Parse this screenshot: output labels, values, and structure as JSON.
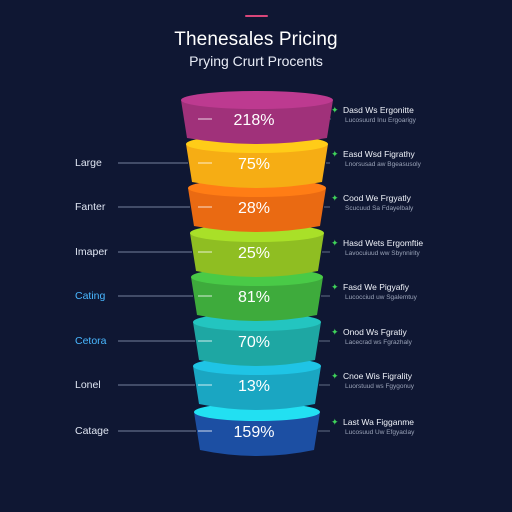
{
  "header": {
    "title": "Thenesales Pricing",
    "subtitle": "Prying Crurt Procents",
    "accent_color": "#d9467a"
  },
  "tiers": [
    {
      "percent": "218%",
      "left_label": "",
      "right_title": "Dasd Ws Ergonitte",
      "right_sub": "Lucosuurd Inu Ergoarigy",
      "color": "#a0317a"
    },
    {
      "percent": "75%",
      "left_label": "Large",
      "right_title": "Easd Wsd Figrathy",
      "right_sub": "Lnorsusad aw Bgeasusoly",
      "color": "#f6ad14"
    },
    {
      "percent": "28%",
      "left_label": "Fanter",
      "right_title": "Cood We Frgyatly",
      "right_sub": "Scucuud Sa Fdayelbaly",
      "color": "#ea6a12"
    },
    {
      "percent": "25%",
      "left_label": "Imaper",
      "right_title": "Hasd Wets Ergomftie",
      "right_sub": "Lavocuiuud ww Sbynnirity",
      "color": "#8fbe22"
    },
    {
      "percent": "81%",
      "left_label": "Cating",
      "right_title": "Fasd We Pigyafiy",
      "right_sub": "Lucocciud uw Sgalemtuy",
      "color": "#3eab3c"
    },
    {
      "percent": "70%",
      "left_label": "Cetora",
      "right_title": "Onod Ws Fgratiy",
      "right_sub": "Lacecrad ws Fgrazhaly",
      "color": "#1ea7a3"
    },
    {
      "percent": "13%",
      "left_label": "Lonel",
      "right_title": "Cnoe Wis Figrality",
      "right_sub": "Luorstuud ws Fgygonuy",
      "color": "#1aa6c2"
    },
    {
      "percent": "159%",
      "left_label": "Catage",
      "right_title": "Last Wa Figganme",
      "right_sub": "Lucosuud Uw Efgyaclay",
      "color": "#1c4fa3"
    }
  ]
}
